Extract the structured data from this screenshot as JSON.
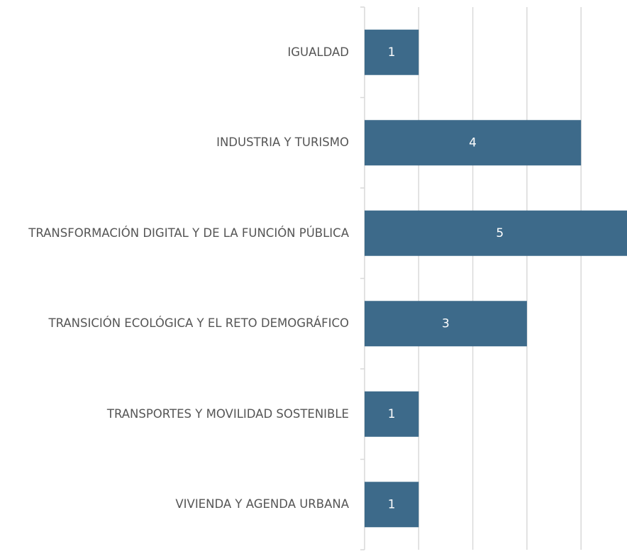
{
  "chart_data": {
    "type": "barh",
    "categories": [
      "IGUALDAD",
      "INDUSTRIA Y TURISMO",
      "TRANSFORMACIÓN DIGITAL Y DE LA FUNCIÓN PÚBLICA",
      "TRANSICIÓN ECOLÓGICA Y EL RETO DEMOGRÁFICO",
      "TRANSPORTES Y MOVILIDAD SOSTENIBLE",
      "VIVIENDA Y AGENDA URBANA"
    ],
    "values": [
      1,
      4,
      5,
      3,
      1,
      1
    ],
    "color": "#3d6a8a",
    "xlim": [
      0,
      5
    ],
    "xticks": [
      0,
      1,
      2,
      3,
      4,
      5
    ],
    "grid": true
  }
}
